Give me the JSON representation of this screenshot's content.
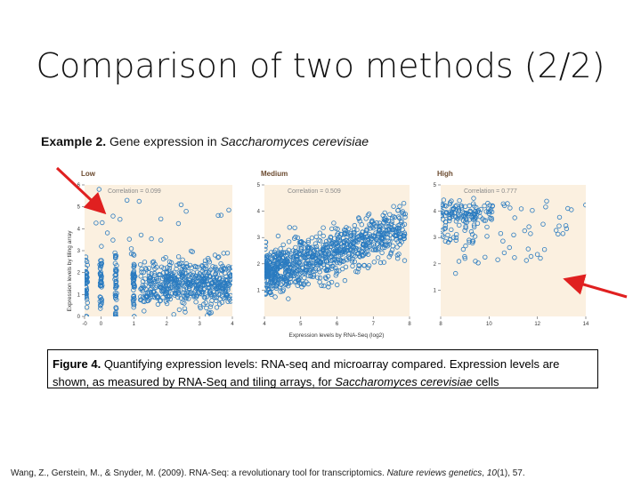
{
  "slide": {
    "title": "Comparison of two methods (2/2)",
    "subtitle_label": "Example 2.",
    "subtitle_text": "Gene expression in",
    "subtitle_organism": "Saccharomyces cerevisiae"
  },
  "caption": {
    "label": "Figure 4.",
    "text_part1": "Quantifying expression levels: RNA-seq and microarray compared. Expression levels are shown, as measured by RNA-Seq and tiling arrays, for",
    "organism": "Saccharomyces cerevisiae",
    "text_part2": "cells"
  },
  "citation": {
    "authors": "Wang, Z., Gerstein, M., & Snyder, M. (2009). RNA-Seq: a revolutionary tool for transcriptomics.",
    "journal": "Nature reviews genetics",
    "details_a": ",",
    "volume": "10",
    "details_b": "(1), 57."
  },
  "colors": {
    "points": "#2a7bc0",
    "arrow": "#e02020",
    "panel_bg": "#fbf0e0",
    "label": "#6b4a2f"
  },
  "chart_data": {
    "type": "scatter",
    "ylabel": "Expression levels by tiling array",
    "xlabel": "Expression levels by RNA-Seq (log2)",
    "panels": [
      {
        "name": "Low",
        "correlation": "Correlation = 0.099",
        "xlim": [
          -0.5,
          4
        ],
        "ylim": [
          0,
          6
        ],
        "xticks": [
          "-0",
          "0",
          "1",
          "2",
          "3",
          "4"
        ],
        "yticks": [
          "0",
          "1",
          "2",
          "3",
          "4",
          "5",
          "6"
        ]
      },
      {
        "name": "Medium",
        "correlation": "Correlation = 0.509",
        "xlim": [
          4,
          8
        ],
        "ylim": [
          0,
          5
        ],
        "xticks": [
          "4",
          "5",
          "6",
          "7",
          "8"
        ],
        "yticks": [
          "1",
          "2",
          "3",
          "4",
          "5"
        ]
      },
      {
        "name": "High",
        "correlation": "Correlation = 0.777",
        "xlim": [
          8,
          14
        ],
        "ylim": [
          0,
          5
        ],
        "xticks": [
          "8",
          "10",
          "12",
          "14"
        ],
        "yticks": [
          "1",
          "2",
          "3",
          "4",
          "5"
        ]
      }
    ]
  }
}
